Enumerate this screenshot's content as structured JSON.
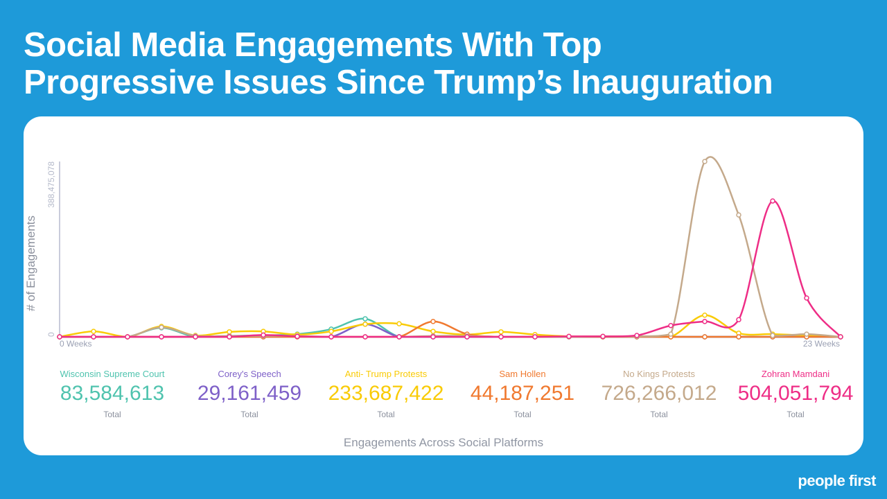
{
  "title_line1": "Social Media Engagements With Top",
  "title_line2": "Progressive Issues Since Trump’s Inauguration",
  "footer": "Engagements Across Social Platforms",
  "logo": "people first",
  "chart_data": {
    "type": "line",
    "title": "Social Media Engagements With Top Progressive Issues Since Trump’s Inauguration",
    "xlabel": "Engagements Across Social Platforms",
    "ylabel": "# of Engagements",
    "x": [
      0,
      1,
      2,
      3,
      4,
      5,
      6,
      7,
      8,
      9,
      10,
      11,
      12,
      13,
      14,
      15,
      16,
      17,
      18,
      19,
      20,
      21,
      22,
      23
    ],
    "x_tick_labels": [
      "0 Weeks",
      "23 Weeks"
    ],
    "y_tick_labels": [
      "0",
      "388,475,078"
    ],
    "ylim": [
      0,
      388475078
    ],
    "grid": false,
    "series": [
      {
        "name": "Wisconsin Supreme Court",
        "total": "83,584,613",
        "total_label": "Total",
        "color": "#4fc3ae",
        "values": [
          0,
          0,
          0,
          20000000,
          0,
          2000000,
          3000000,
          6000000,
          17000000,
          40000000,
          0,
          0,
          0,
          0,
          0,
          0,
          0,
          0,
          0,
          0,
          0,
          0,
          0,
          0
        ]
      },
      {
        "name": "Corey's Speech",
        "total": "29,161,459",
        "total_label": "Total",
        "color": "#7e60c8",
        "values": [
          0,
          0,
          0,
          0,
          0,
          0,
          0,
          0,
          0,
          28000000,
          0,
          0,
          0,
          0,
          0,
          0,
          0,
          0,
          0,
          0,
          0,
          0,
          0,
          0
        ]
      },
      {
        "name": "Anti- Trump Protests",
        "total": "233,687,422",
        "total_label": "Total",
        "color": "#f9cb06",
        "values": [
          0,
          12000000,
          0,
          23000000,
          3000000,
          11000000,
          12000000,
          5000000,
          12000000,
          28000000,
          29000000,
          12000000,
          5000000,
          11000000,
          5000000,
          1000000,
          1000000,
          1000000,
          0,
          48000000,
          8000000,
          6000000,
          3000000,
          0
        ]
      },
      {
        "name": "Sam Hollen",
        "total": "44,187,251",
        "total_label": "Total",
        "color": "#f0792f",
        "values": [
          0,
          0,
          0,
          0,
          0,
          0,
          0,
          0,
          0,
          0,
          0,
          34000000,
          6000000,
          0,
          0,
          0,
          0,
          0,
          0,
          0,
          0,
          0,
          0,
          0
        ]
      },
      {
        "name": "No Kings Protests",
        "total": "726,266,012",
        "total_label": "Total",
        "color": "#c4a98b",
        "values": [
          0,
          0,
          0,
          21000000,
          2000000,
          2000000,
          2000000,
          2000000,
          0,
          0,
          0,
          2000000,
          2000000,
          0,
          0,
          0,
          1000000,
          1000000,
          6000000,
          388475078,
          270000000,
          3000000,
          6000000,
          0
        ]
      },
      {
        "name": "Zohran Mamdani",
        "total": "504,051,794",
        "total_label": "Total",
        "color": "#ee2d86",
        "values": [
          0,
          0,
          0,
          0,
          0,
          0,
          4000000,
          1000000,
          0,
          0,
          0,
          0,
          0,
          0,
          0,
          1000000,
          1000000,
          3000000,
          25000000,
          34000000,
          38000000,
          301000000,
          86000000,
          0
        ]
      }
    ]
  }
}
